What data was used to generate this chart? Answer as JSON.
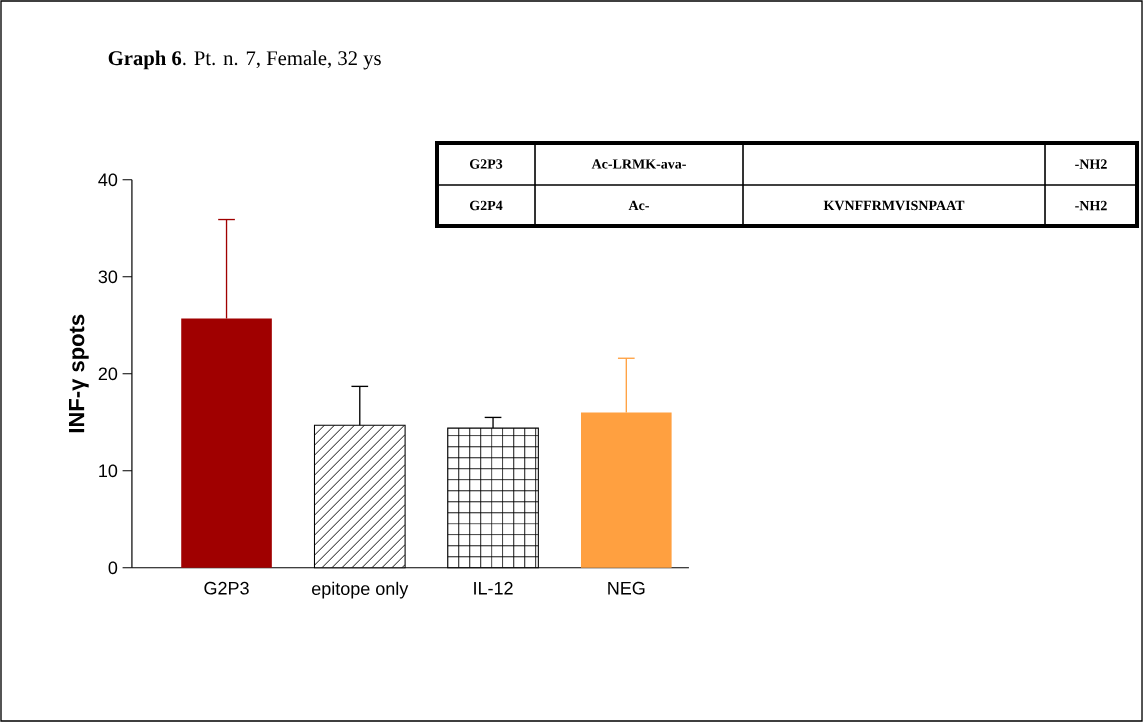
{
  "chart_data": {
    "type": "bar",
    "title": "**Graph 6**. Pt. n. 7, Female, 32 ys",
    "ylabel": "INF-γ spots",
    "categories": [
      "G2P3",
      "epitope only",
      "IL-12",
      "NEG"
    ],
    "values": [
      25.7,
      14.7,
      14.4,
      16.0
    ],
    "errors": [
      [
        25.7,
        35.9
      ],
      [
        14.7,
        18.7
      ],
      [
        14.4,
        15.5
      ],
      [
        16.0,
        21.6
      ]
    ],
    "colors": [
      "#a00000",
      "#000000",
      "#000000",
      "#ffa040"
    ],
    "ylim": [
      0,
      40
    ],
    "yticks": [
      0,
      10,
      20,
      30,
      40
    ],
    "grid": false,
    "annotations": [
      "G2P3",
      "Ac-LRMK-ava-",
      "-NH2",
      "G2P4",
      "Ac-",
      "KVNFFRMVISNPAAT",
      "-NH2"
    ]
  }
}
